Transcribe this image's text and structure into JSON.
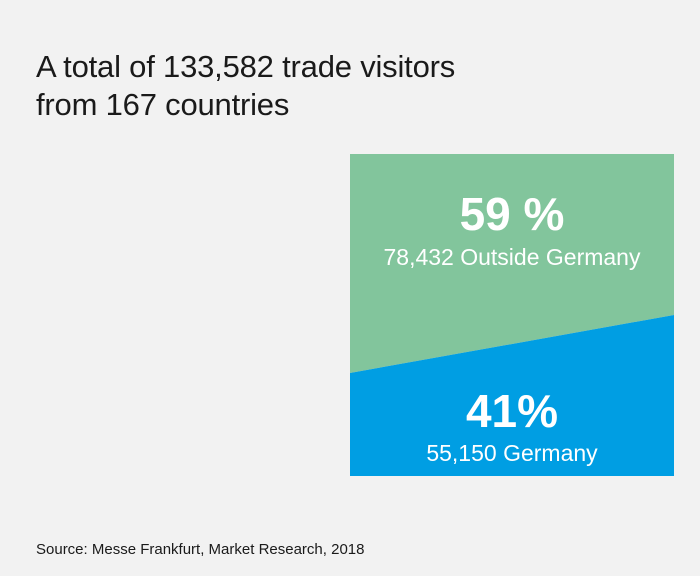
{
  "title": {
    "line1": "A total of 133,582 trade visitors",
    "line2": "from 167 countries"
  },
  "source": "Source: Messe Frankfurt, Market Research, 2018",
  "colors": {
    "background": "#f2f2f2",
    "outside_germany": "#82c59c",
    "germany": "#009ee3"
  },
  "chart_data": {
    "type": "area",
    "categories": [
      "Outside Germany",
      "Germany"
    ],
    "series": [
      {
        "name": "Outside Germany",
        "percent": 59,
        "percent_label": "59 %",
        "value": 78432,
        "label": "78,432 Outside Germany",
        "color": "#82c59c"
      },
      {
        "name": "Germany",
        "percent": 41,
        "percent_label": "41%",
        "value": 55150,
        "label": "55,150 Germany",
        "color": "#009ee3"
      }
    ],
    "total": 133582,
    "countries": 167
  }
}
